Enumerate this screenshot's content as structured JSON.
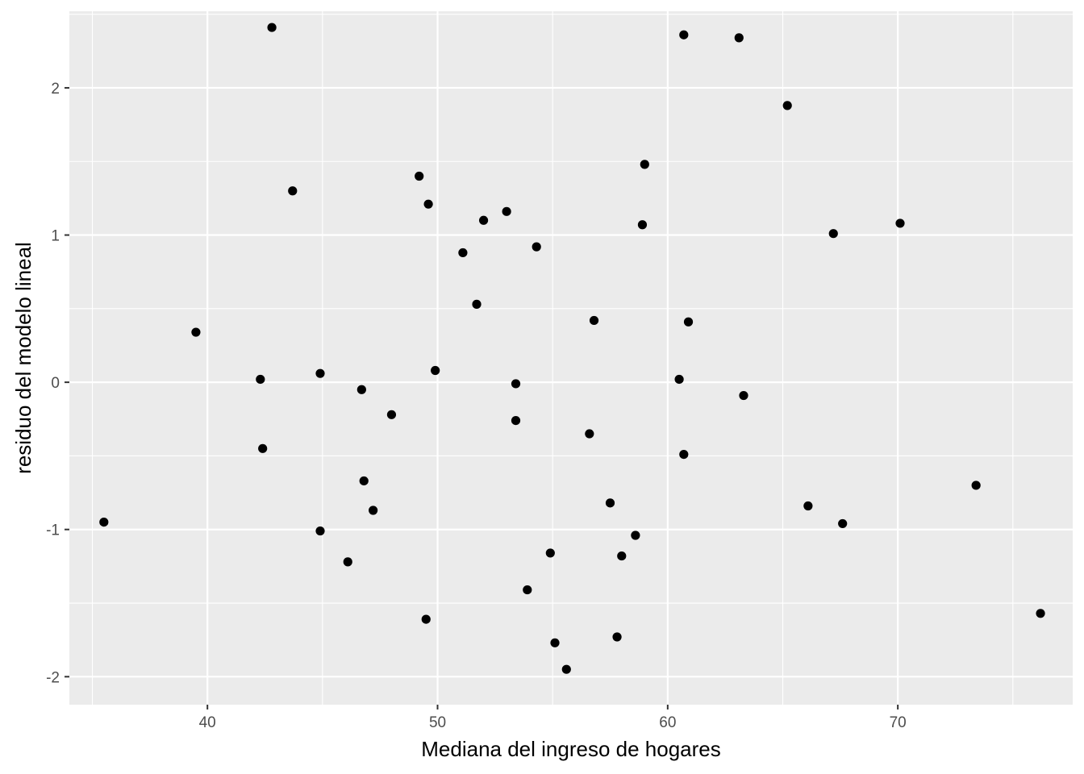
{
  "chart_data": {
    "type": "scatter",
    "title": "",
    "xlabel": "Mediana del ingreso de hogares",
    "ylabel": "residuo del modelo lineal",
    "xlim": [
      34.0,
      77.6
    ],
    "ylim": [
      -2.19,
      2.52
    ],
    "x_ticks": [
      40,
      50,
      60,
      70
    ],
    "x_tick_labels": [
      "40",
      "50",
      "60",
      "70"
    ],
    "y_ticks": [
      2,
      1,
      0,
      -1,
      -2
    ],
    "y_tick_labels": [
      "2",
      "1",
      "0",
      "-1",
      "-2"
    ],
    "x_minor": [
      35,
      45,
      55,
      65,
      75
    ],
    "y_minor": [
      2.5,
      1.5,
      0.5,
      -0.5,
      -1.5
    ],
    "grid": true,
    "legend": "none",
    "colors": {
      "panel": "#ebebeb",
      "grid": "#ffffff",
      "point": "#000000",
      "tick": "#333333"
    },
    "points": [
      {
        "x": 35.5,
        "y": -0.95
      },
      {
        "x": 39.5,
        "y": 0.34
      },
      {
        "x": 42.3,
        "y": 0.02
      },
      {
        "x": 42.4,
        "y": -0.45
      },
      {
        "x": 42.8,
        "y": 2.41
      },
      {
        "x": 43.7,
        "y": 1.3
      },
      {
        "x": 44.9,
        "y": 0.06
      },
      {
        "x": 44.9,
        "y": -1.01
      },
      {
        "x": 46.1,
        "y": -1.22
      },
      {
        "x": 46.7,
        "y": -0.05
      },
      {
        "x": 46.8,
        "y": -0.67
      },
      {
        "x": 47.2,
        "y": -0.87
      },
      {
        "x": 48.0,
        "y": -0.22
      },
      {
        "x": 49.2,
        "y": 1.4
      },
      {
        "x": 49.5,
        "y": -1.61
      },
      {
        "x": 49.6,
        "y": 1.21
      },
      {
        "x": 49.9,
        "y": 0.08
      },
      {
        "x": 51.1,
        "y": 0.88
      },
      {
        "x": 51.7,
        "y": 0.53
      },
      {
        "x": 52.0,
        "y": 1.1
      },
      {
        "x": 53.0,
        "y": 1.16
      },
      {
        "x": 53.4,
        "y": -0.01
      },
      {
        "x": 53.4,
        "y": -0.26
      },
      {
        "x": 53.9,
        "y": -1.41
      },
      {
        "x": 54.3,
        "y": 0.92
      },
      {
        "x": 54.9,
        "y": -1.16
      },
      {
        "x": 55.1,
        "y": -1.77
      },
      {
        "x": 55.6,
        "y": -1.95
      },
      {
        "x": 56.6,
        "y": -0.35
      },
      {
        "x": 56.8,
        "y": 0.42
      },
      {
        "x": 57.5,
        "y": -0.82
      },
      {
        "x": 57.8,
        "y": -1.73
      },
      {
        "x": 58.0,
        "y": -1.18
      },
      {
        "x": 58.6,
        "y": -1.04
      },
      {
        "x": 58.9,
        "y": 1.07
      },
      {
        "x": 59.0,
        "y": 1.48
      },
      {
        "x": 60.5,
        "y": 0.02
      },
      {
        "x": 60.7,
        "y": -0.49
      },
      {
        "x": 60.7,
        "y": 2.36
      },
      {
        "x": 60.9,
        "y": 0.41
      },
      {
        "x": 63.1,
        "y": 2.34
      },
      {
        "x": 63.3,
        "y": -0.09
      },
      {
        "x": 65.2,
        "y": 1.88
      },
      {
        "x": 66.1,
        "y": -0.84
      },
      {
        "x": 67.2,
        "y": 1.01
      },
      {
        "x": 67.6,
        "y": -0.96
      },
      {
        "x": 70.1,
        "y": 1.08
      },
      {
        "x": 73.4,
        "y": -0.7
      },
      {
        "x": 76.2,
        "y": -1.57
      }
    ]
  }
}
